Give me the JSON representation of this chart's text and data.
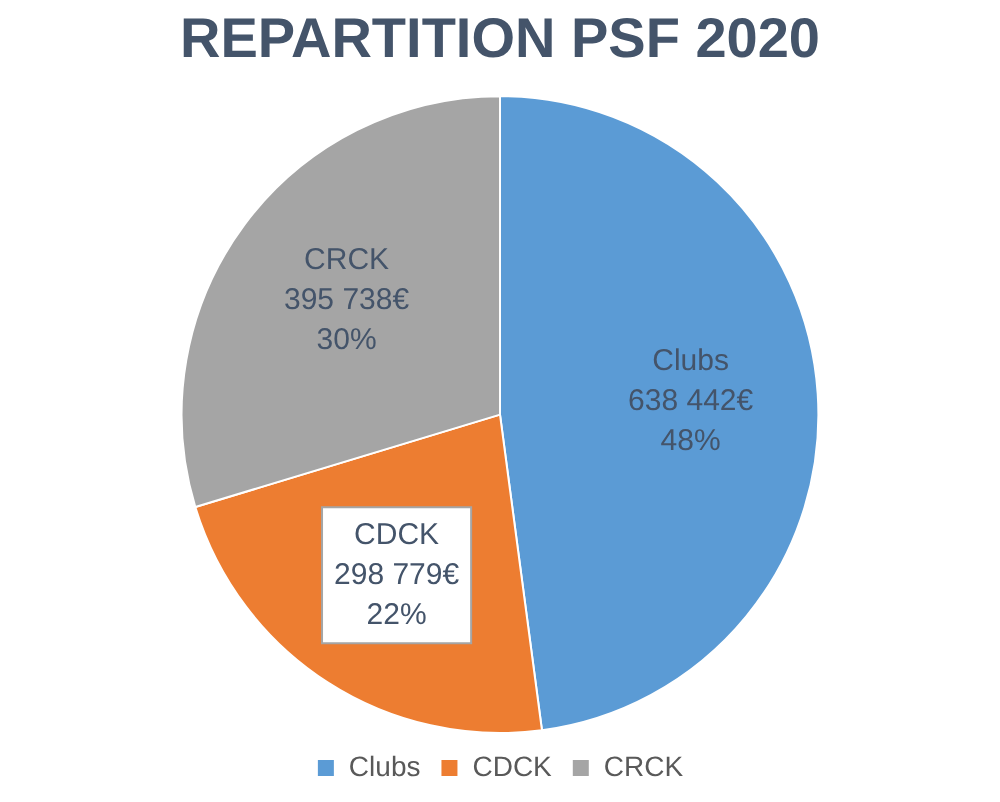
{
  "chart_data": {
    "type": "pie",
    "title": "REPARTITION PSF 2020",
    "categories": [
      "Clubs",
      "CDCK",
      "CRCK"
    ],
    "values": [
      638442,
      298779,
      395738
    ],
    "colors": [
      "#5b9bd5",
      "#ed7d31",
      "#a5a5a5"
    ],
    "value_labels": [
      "638 442€\n48%",
      "298 779€\n22%",
      "395 738€\n30%"
    ],
    "legend": "bottom"
  }
}
